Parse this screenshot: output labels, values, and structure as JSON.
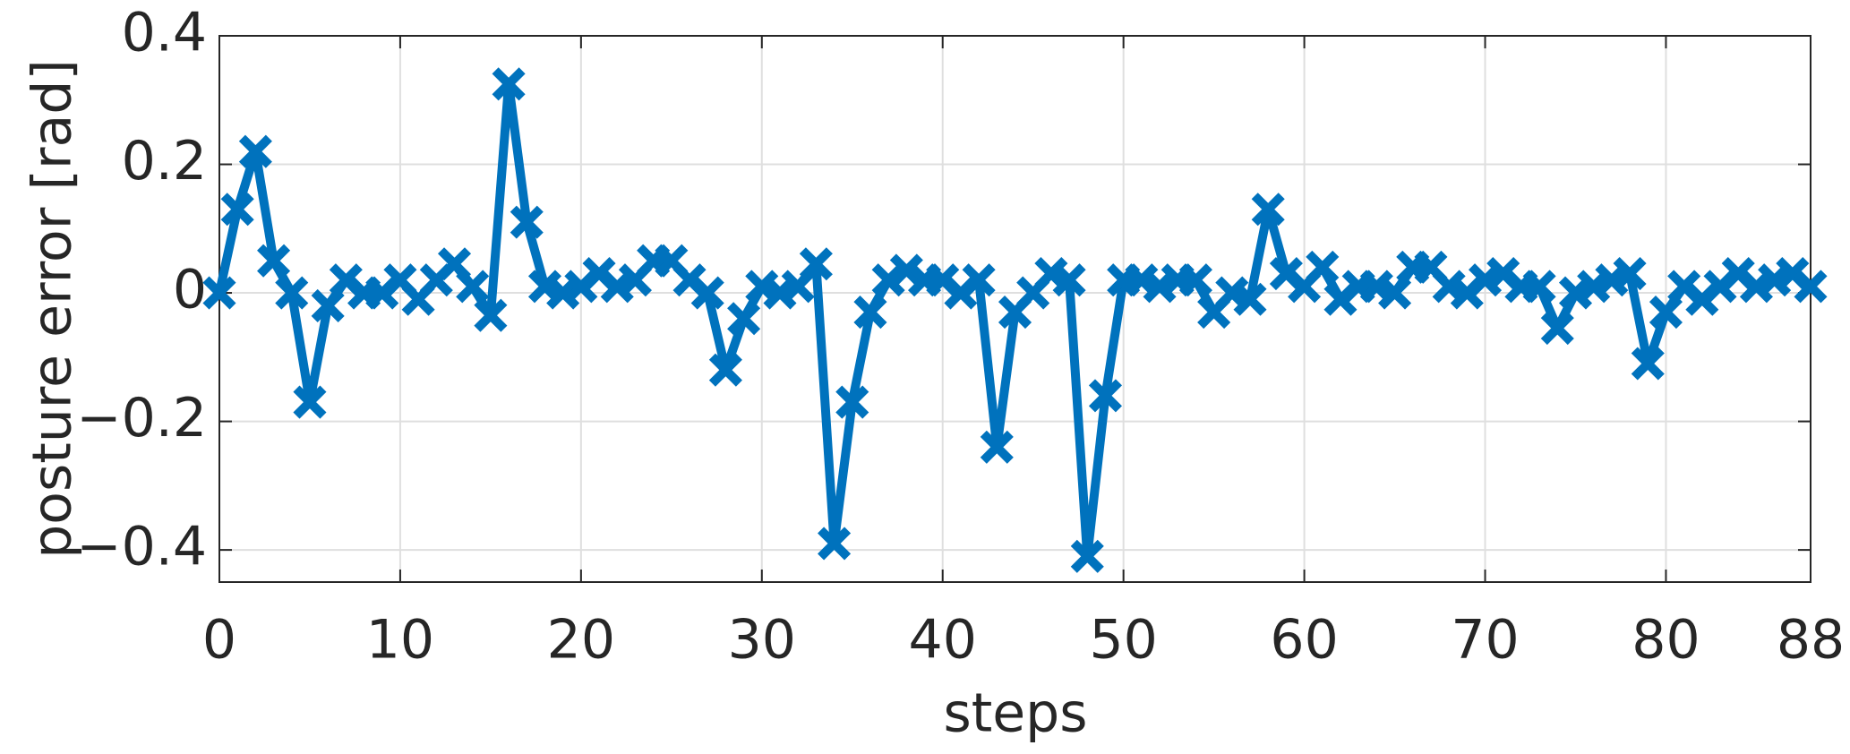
{
  "chart_data": {
    "type": "line",
    "xlabel": "steps",
    "ylabel": "posture error [rad]",
    "x": [
      0,
      1,
      2,
      3,
      4,
      5,
      6,
      7,
      8,
      9,
      10,
      11,
      12,
      13,
      14,
      15,
      16,
      17,
      18,
      19,
      20,
      21,
      22,
      23,
      24,
      25,
      26,
      27,
      28,
      29,
      30,
      31,
      32,
      33,
      34,
      35,
      36,
      37,
      38,
      39,
      40,
      41,
      42,
      43,
      44,
      45,
      46,
      47,
      48,
      49,
      50,
      51,
      52,
      53,
      54,
      55,
      56,
      57,
      58,
      59,
      60,
      61,
      62,
      63,
      64,
      65,
      66,
      67,
      68,
      69,
      70,
      71,
      72,
      73,
      74,
      75,
      76,
      77,
      78,
      79,
      80,
      81,
      82,
      83,
      84,
      85,
      86,
      87,
      88
    ],
    "values": [
      0,
      0.13,
      0.22,
      0.05,
      0,
      -0.17,
      -0.02,
      0.02,
      0,
      0,
      0.02,
      -0.01,
      0.02,
      0.045,
      0.01,
      -0.035,
      0.325,
      0.11,
      0.01,
      0,
      0.01,
      0.03,
      0.01,
      0.02,
      0.05,
      0.05,
      0.02,
      0,
      -0.12,
      -0.04,
      0.01,
      0,
      0.01,
      0.045,
      -0.39,
      -0.17,
      -0.03,
      0.02,
      0.035,
      0.02,
      0.02,
      0,
      0.02,
      -0.24,
      -0.03,
      0,
      0.03,
      0.02,
      -0.41,
      -0.16,
      0.02,
      0.02,
      0.01,
      0.02,
      0.02,
      -0.03,
      0,
      -0.01,
      0.13,
      0.03,
      0.01,
      0.04,
      -0.01,
      0.01,
      0.01,
      0,
      0.04,
      0.04,
      0.01,
      0,
      0.02,
      0.03,
      0.01,
      0.01,
      -0.055,
      0,
      0.01,
      0.02,
      0.03,
      -0.11,
      -0.03,
      0.01,
      -0.01,
      0.01,
      0.03,
      0.01,
      0.02,
      0.03,
      0.01
    ],
    "color": "#0072bd",
    "xlim": [
      0,
      88
    ],
    "xticks": [
      0,
      10,
      20,
      30,
      40,
      50,
      60,
      70,
      80,
      88
    ],
    "ylim": [
      -0.45,
      0.4
    ],
    "yticks": [
      {
        "value": -0.4,
        "label": "−0.4"
      },
      {
        "value": -0.2,
        "label": "−0.2"
      },
      0,
      0.2,
      0.4
    ],
    "grid": true
  }
}
